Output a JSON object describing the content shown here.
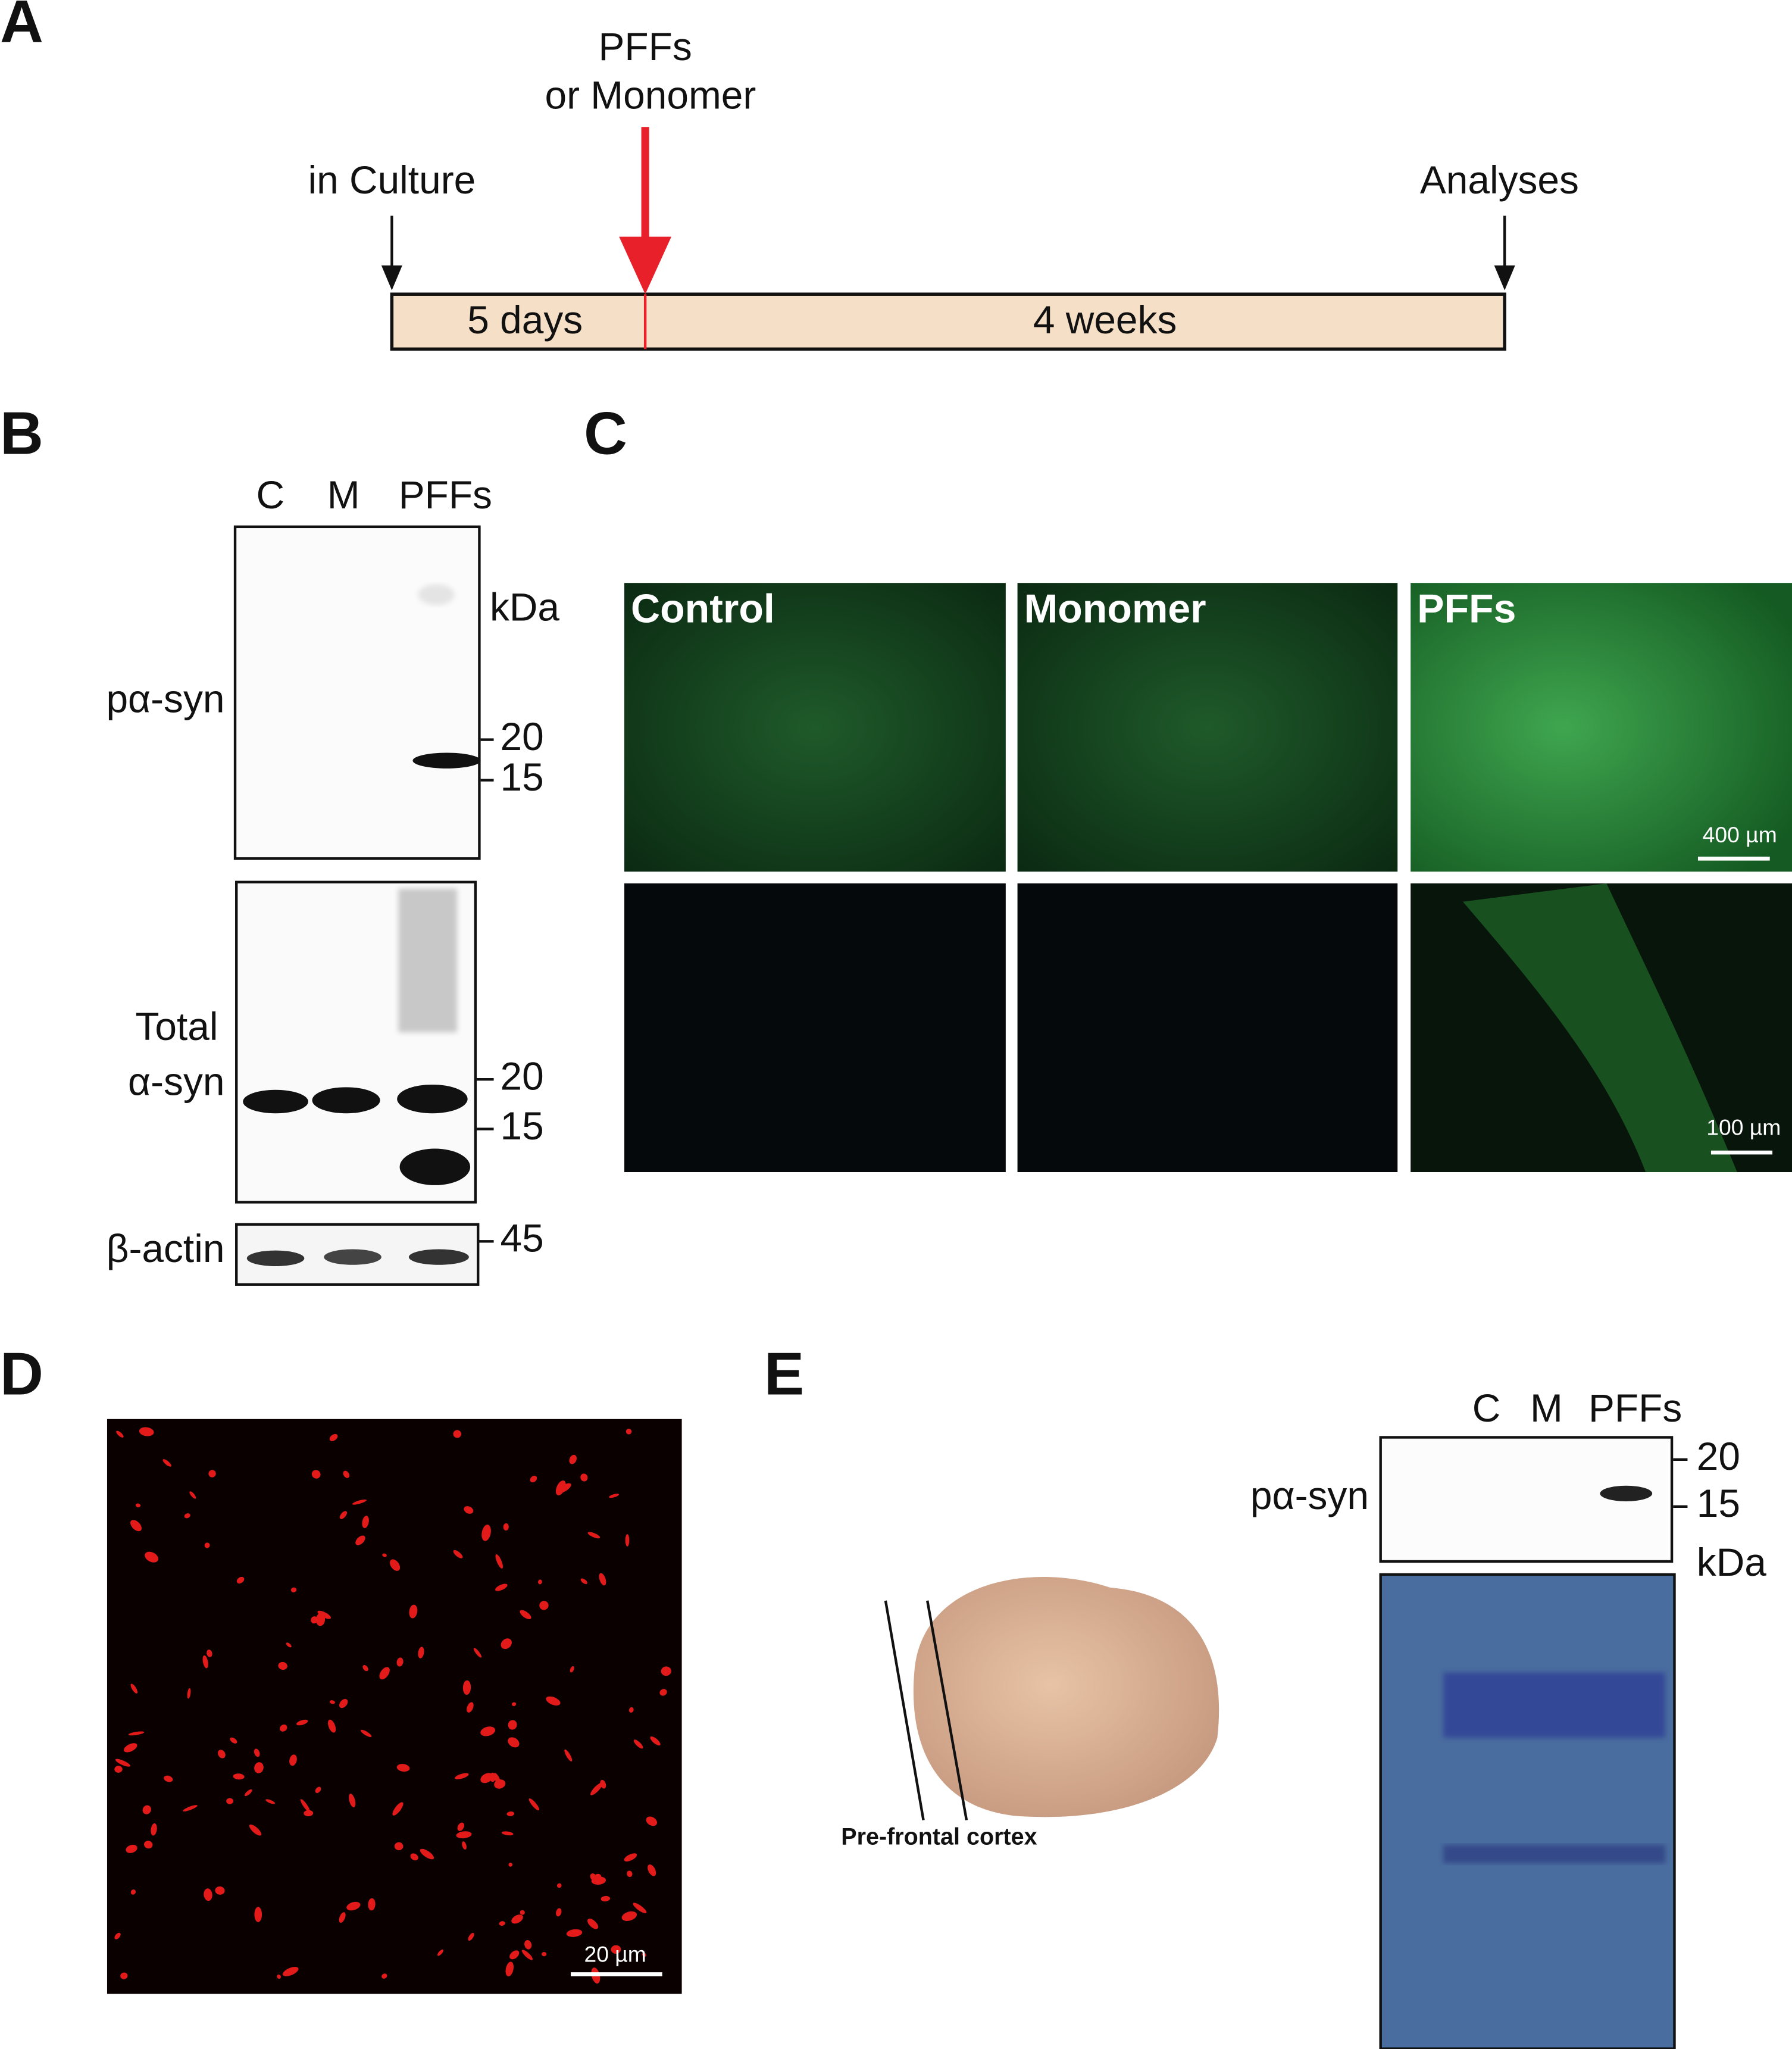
{
  "panels": {
    "a": {
      "label": "A",
      "treatment": [
        "PFFs",
        "or Monomer"
      ],
      "start": "in Culture",
      "end": "Analyses",
      "phase1": "5 days",
      "phase2": "4 weeks"
    },
    "b": {
      "label": "B",
      "lanes": [
        "C",
        "M",
        "PFFs"
      ],
      "blot1": {
        "label": "pα-syn",
        "unit": "kDa",
        "markers": [
          "20",
          "15"
        ]
      },
      "blot2": {
        "label": [
          "Total",
          "α-syn"
        ],
        "markers": [
          "20",
          "15"
        ]
      },
      "blot3": {
        "label": "β-actin",
        "markers": [
          "45"
        ]
      }
    },
    "c": {
      "label": "C",
      "columns": [
        "Control",
        "Monomer",
        "PFFs"
      ],
      "scale_bars": [
        "400 µm",
        "100 µm"
      ]
    },
    "d": {
      "label": "D",
      "scale_bar": "20 µm"
    },
    "e": {
      "label": "E",
      "region": "Pre-frontal cortex",
      "lanes": [
        "C",
        "M",
        "PFFs"
      ],
      "blot_label": "pα-syn",
      "markers": [
        "20",
        "15"
      ],
      "unit": "kDa"
    }
  }
}
